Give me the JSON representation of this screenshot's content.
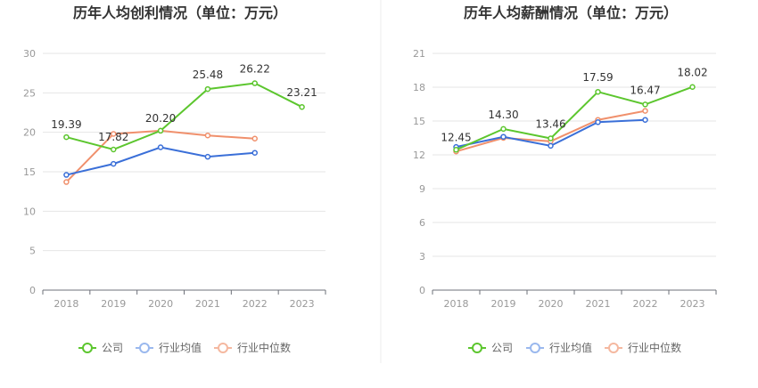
{
  "colors": {
    "company": "#5cc62e",
    "industry_avg": "#3a6fd8",
    "industry_median": "#f0906c"
  },
  "legend": {
    "company": "公司",
    "industry_avg": "行业均值",
    "industry_median": "行业中位数"
  },
  "chart_data": [
    {
      "type": "line",
      "title": "历年人均创利情况（单位：万元）",
      "categories": [
        "2018",
        "2019",
        "2020",
        "2021",
        "2022",
        "2023"
      ],
      "ylim": [
        0,
        30
      ],
      "yticks": [
        0,
        5,
        10,
        15,
        20,
        25,
        30
      ],
      "series": [
        {
          "name": "公司",
          "values": [
            19.39,
            17.82,
            20.2,
            25.48,
            26.22,
            23.21
          ]
        },
        {
          "name": "行业均值",
          "values": [
            14.6,
            16.0,
            18.1,
            16.9,
            17.4,
            null
          ]
        },
        {
          "name": "行业中位数",
          "values": [
            13.7,
            19.8,
            20.2,
            19.6,
            19.2,
            null
          ]
        }
      ]
    },
    {
      "type": "line",
      "title": "历年人均薪酬情况（单位：万元）",
      "categories": [
        "2018",
        "2019",
        "2020",
        "2021",
        "2022",
        "2023"
      ],
      "ylim": [
        0,
        21
      ],
      "yticks": [
        0,
        3,
        6,
        9,
        12,
        15,
        18,
        21
      ],
      "series": [
        {
          "name": "公司",
          "values": [
            12.45,
            14.3,
            13.46,
            17.59,
            16.47,
            18.02
          ]
        },
        {
          "name": "行业均值",
          "values": [
            12.7,
            13.6,
            12.8,
            14.9,
            15.1,
            null
          ]
        },
        {
          "name": "行业中位数",
          "values": [
            12.3,
            13.5,
            13.2,
            15.1,
            15.9,
            null
          ]
        }
      ]
    }
  ]
}
